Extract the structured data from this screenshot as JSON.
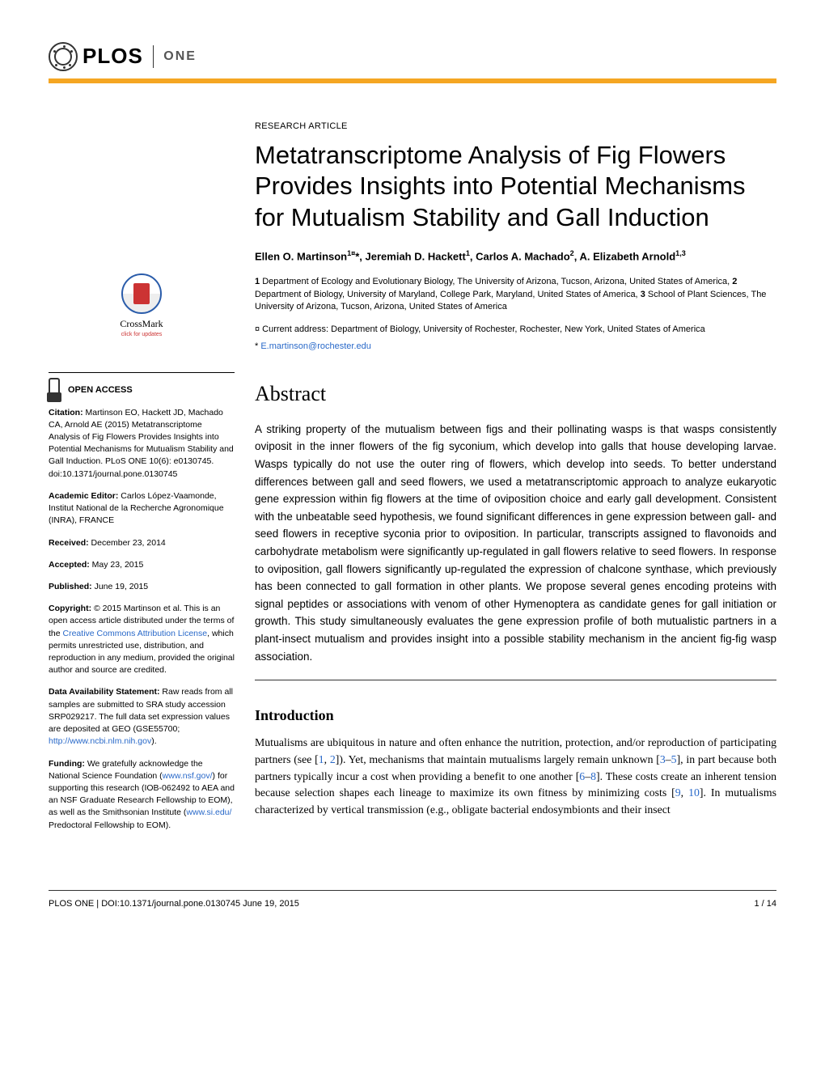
{
  "journal": {
    "brand": "PLOS",
    "sub": "ONE"
  },
  "article_type": "RESEARCH ARTICLE",
  "title": "Metatranscriptome Analysis of Fig Flowers Provides Insights into Potential Mechanisms for Mutualism Stability and Gall Induction",
  "authors_html": "Ellen O. Martinson<sup>1¤</sup>*, Jeremiah D. Hackett<sup>1</sup>, Carlos A. Machado<sup>2</sup>, A. Elizabeth Arnold<sup>1,3</sup>",
  "affiliations": [
    "Department of Ecology and Evolutionary Biology, The University of Arizona, Tucson, Arizona, United States of America,",
    "Department of Biology, University of Maryland, College Park, Maryland, United States of America,",
    "School of Plant Sciences, The University of Arizona, Tucson, Arizona, United States of America"
  ],
  "current_address": "¤ Current address: Department of Biology, University of Rochester, Rochester, New York, United States of America",
  "correspondence_mark": "*",
  "email": "E.martinson@rochester.edu",
  "crossmark": {
    "title": "CrossMark",
    "sub": "click for updates"
  },
  "open_access_label": "OPEN ACCESS",
  "sidebar": {
    "citation_label": "Citation:",
    "citation": " Martinson EO, Hackett JD, Machado CA, Arnold AE (2015) Metatranscriptome Analysis of Fig Flowers Provides Insights into Potential Mechanisms for Mutualism Stability and Gall Induction. PLoS ONE 10(6): e0130745. doi:10.1371/journal.pone.0130745",
    "editor_label": "Academic Editor:",
    "editor": " Carlos López-Vaamonde, Institut National de la Recherche Agronomique (INRA), FRANCE",
    "received_label": "Received:",
    "received": " December 23, 2014",
    "accepted_label": "Accepted:",
    "accepted": " May 23, 2015",
    "published_label": "Published:",
    "published": " June 19, 2015",
    "copyright_label": "Copyright:",
    "copyright_pre": " © 2015 Martinson et al. This is an open access article distributed under the terms of the ",
    "copyright_link": "Creative Commons Attribution License",
    "copyright_post": ", which permits unrestricted use, distribution, and reproduction in any medium, provided the original author and source are credited.",
    "data_label": "Data Availability Statement:",
    "data_pre": " Raw reads from all samples are submitted to SRA study accession SRP029217. The full data set expression values are deposited at GEO (GSE55700; ",
    "data_link": "http://www.ncbi.nlm.nih.gov",
    "data_post": ").",
    "funding_label": "Funding:",
    "funding_pre": " We gratefully acknowledge the National Science Foundation (",
    "funding_link1": "www.nsf.gov/",
    "funding_mid": ") for supporting this research (IOB-062492 to AEA and an NSF Graduate Research Fellowship to EOM), as well as the Smithsonian Institute (",
    "funding_link2": "www.si.edu/",
    "funding_post": " Predoctoral Fellowship to EOM)."
  },
  "abstract_heading": "Abstract",
  "abstract": "A striking property of the mutualism between figs and their pollinating wasps is that wasps consistently oviposit in the inner flowers of the fig syconium, which develop into galls that house developing larvae. Wasps typically do not use the outer ring of flowers, which develop into seeds. To better understand differences between gall and seed flowers, we used a metatranscriptomic approach to analyze eukaryotic gene expression within fig flowers at the time of oviposition choice and early gall development. Consistent with the unbeatable seed hypothesis, we found significant differences in gene expression between gall- and seed flowers in receptive syconia prior to oviposition. In particular, transcripts assigned to flavonoids and carbohydrate metabolism were significantly up-regulated in gall flowers relative to seed flowers. In response to oviposition, gall flowers significantly up-regulated the expression of chalcone synthase, which previously has been connected to gall formation in other plants. We propose several genes encoding proteins with signal peptides or associations with venom of other Hymenoptera as candidate genes for gall initiation or growth. This study simultaneously evaluates the gene expression profile of both mutualistic partners in a plant-insect mutualism and provides insight into a possible stability mechanism in the ancient fig-fig wasp association.",
  "intro_heading": "Introduction",
  "intro_body_pre": "Mutualisms are ubiquitous in nature and often enhance the nutrition, protection, and/or reproduction of participating partners (see [",
  "intro_refs": {
    "r1": "1",
    "r2": "2",
    "r3": "3",
    "r5": "5",
    "r6": "6",
    "r8": "8",
    "r9": "9",
    "r10": "10"
  },
  "intro_seg1": "]). Yet, mechanisms that maintain mutualisms largely remain unknown [",
  "intro_seg2": "], in part because both partners typically incur a cost when providing a benefit to one another [",
  "intro_seg3": "]. These costs create an inherent tension because selection shapes each lineage to maximize its own fitness by minimizing costs [",
  "intro_seg4": "]. In mutualisms characterized by vertical transmission (e.g., obligate bacterial endosymbionts and their insect",
  "footer": {
    "left": "PLOS ONE | DOI:10.1371/journal.pone.0130745   June 19, 2015",
    "right": "1 / 14"
  },
  "colors": {
    "accent": "#f5a623",
    "link": "#2969c9",
    "crossmark_ring": "#2a5caa",
    "crossmark_red": "#cc3333"
  }
}
